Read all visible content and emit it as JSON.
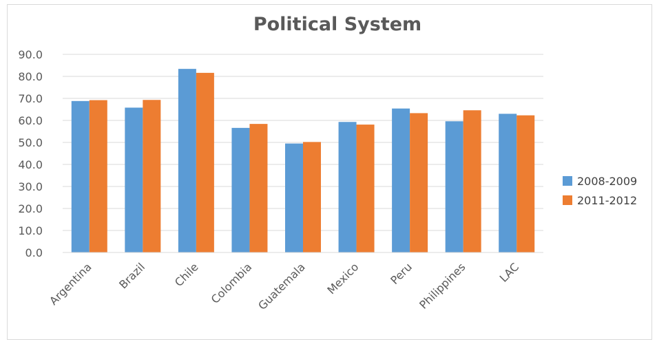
{
  "chart_data": {
    "type": "bar",
    "title": "Political System",
    "xlabel": "",
    "ylabel": "",
    "categories": [
      "Argentina",
      "Brazil",
      "Chile",
      "Colombia",
      "Guatemala",
      "Mexico",
      "Peru",
      "Philippines",
      "LAC"
    ],
    "series": [
      {
        "name": "2008-2009",
        "color": "#5b9bd5",
        "values": [
          68.8,
          65.8,
          83.4,
          56.6,
          49.5,
          59.3,
          65.4,
          59.6,
          63.0
        ]
      },
      {
        "name": "2011-2012",
        "color": "#ed7d31",
        "values": [
          69.2,
          69.3,
          81.6,
          58.4,
          50.2,
          58.1,
          63.3,
          64.6,
          62.3
        ]
      }
    ],
    "ylim": [
      0,
      90
    ],
    "yticks": [
      "0.0",
      "10.0",
      "20.0",
      "30.0",
      "40.0",
      "50.0",
      "60.0",
      "70.0",
      "80.0",
      "90.0"
    ],
    "grid": true,
    "legend_position": "right"
  }
}
